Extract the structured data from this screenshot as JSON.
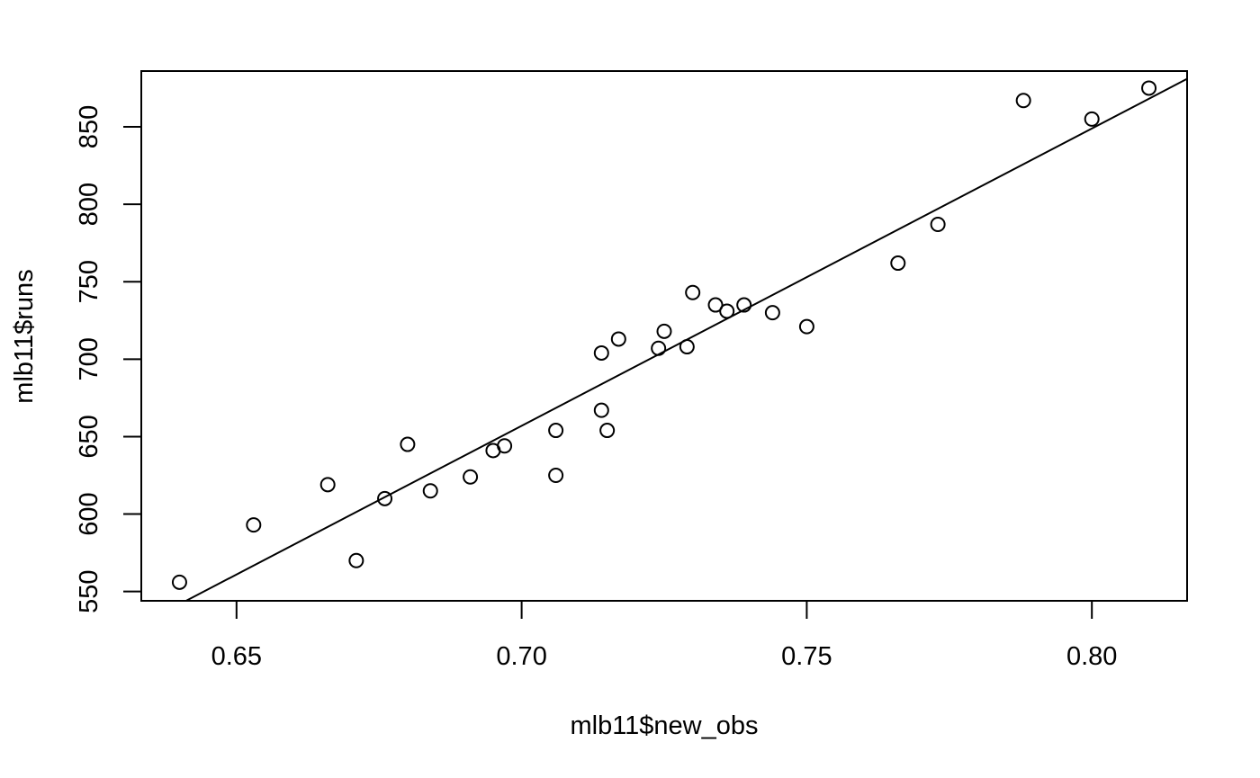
{
  "chart_data": {
    "type": "scatter",
    "xlabel": "mlb11$new_obs",
    "ylabel": "mlb11$runs",
    "xlim": [
      0.6333,
      0.8167
    ],
    "ylim": [
      544,
      886
    ],
    "xticks": [
      0.65,
      0.7,
      0.75,
      0.8
    ],
    "xtick_labels": [
      "0.65",
      "0.70",
      "0.75",
      "0.80"
    ],
    "yticks": [
      550,
      600,
      650,
      700,
      750,
      800,
      850
    ],
    "ytick_labels": [
      "550",
      "600",
      "650",
      "700",
      "750",
      "800",
      "850"
    ],
    "grid": false,
    "legend": "none",
    "series": [
      {
        "points": [
          [
            0.64,
            556
          ],
          [
            0.653,
            593
          ],
          [
            0.666,
            619
          ],
          [
            0.671,
            570
          ],
          [
            0.676,
            610
          ],
          [
            0.68,
            645
          ],
          [
            0.684,
            615
          ],
          [
            0.691,
            624
          ],
          [
            0.695,
            641
          ],
          [
            0.697,
            644
          ],
          [
            0.706,
            654
          ],
          [
            0.706,
            625
          ],
          [
            0.714,
            704
          ],
          [
            0.714,
            667
          ],
          [
            0.715,
            654
          ],
          [
            0.717,
            713
          ],
          [
            0.724,
            707
          ],
          [
            0.725,
            718
          ],
          [
            0.729,
            708
          ],
          [
            0.73,
            743
          ],
          [
            0.734,
            735
          ],
          [
            0.736,
            731
          ],
          [
            0.739,
            735
          ],
          [
            0.744,
            730
          ],
          [
            0.75,
            721
          ],
          [
            0.766,
            762
          ],
          [
            0.773,
            787
          ],
          [
            0.788,
            867
          ],
          [
            0.8,
            855
          ],
          [
            0.81,
            875
          ]
        ]
      }
    ],
    "fit_line": {
      "intercept": -686.61,
      "slope": 1919.4
    }
  }
}
